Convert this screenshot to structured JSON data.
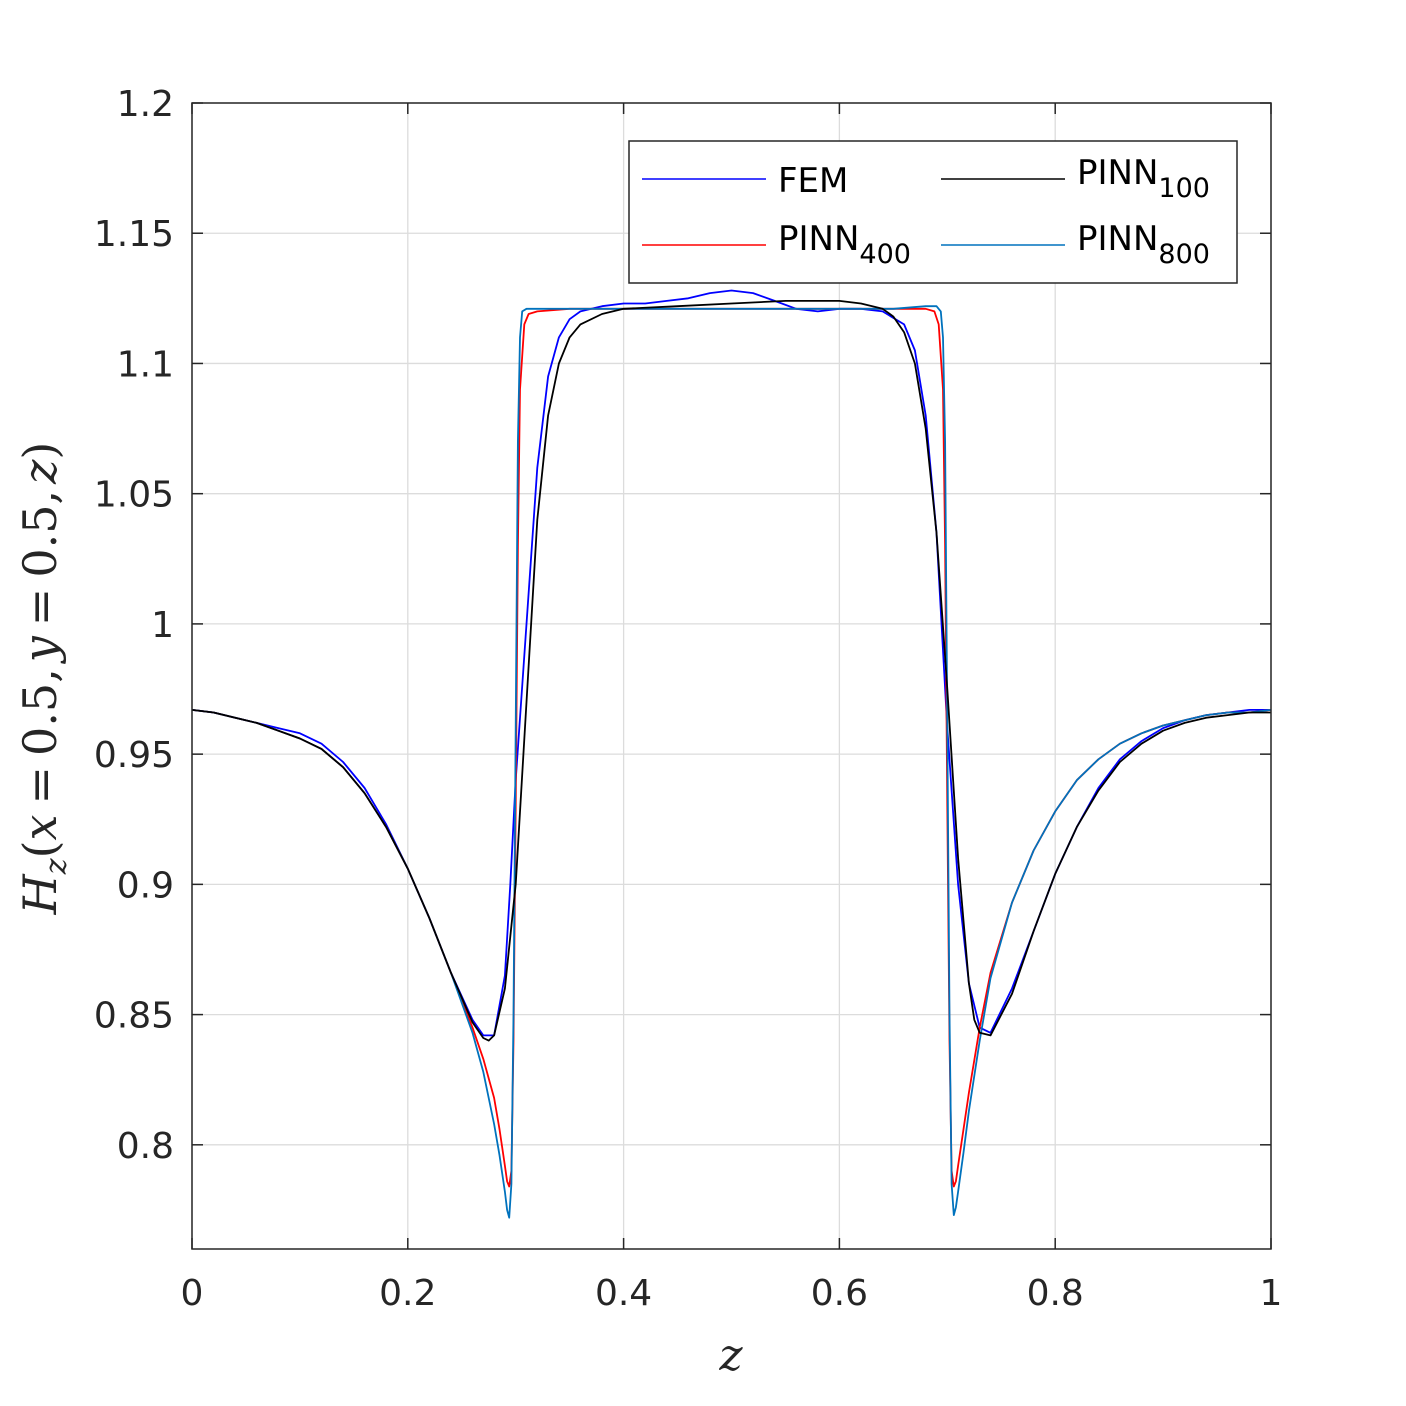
{
  "chart_data": {
    "type": "line",
    "title": "",
    "xlabel": "z",
    "ylabel": {
      "H": "H",
      "z_sub": "z",
      "open": "(",
      "x": "x",
      "eq": "=",
      "v1": "0.5",
      "comma": ",",
      "y": "y",
      "v2": "0.5",
      "z": "z",
      "close": ")"
    },
    "xlim": [
      0,
      1
    ],
    "ylim": [
      0.76,
      1.2
    ],
    "xticks": [
      0,
      0.2,
      0.4,
      0.6,
      0.8,
      1
    ],
    "xtick_labels": [
      "0",
      "0.2",
      "0.4",
      "0.6",
      "0.8",
      "1"
    ],
    "yticks": [
      0.8,
      0.85,
      0.9,
      0.95,
      1,
      1.05,
      1.1,
      1.15,
      1.2
    ],
    "ytick_labels": [
      "0.8",
      "0.85",
      "0.9",
      "0.95",
      "1",
      "1.05",
      "1.1",
      "1.15",
      "1.2"
    ],
    "grid": true,
    "legend": {
      "placement": "top-right",
      "columns": 2
    },
    "series": [
      {
        "name": "FEM",
        "label_main": "FEM",
        "label_sub": "",
        "color": "#0000ff",
        "x": [
          0,
          0.02,
          0.04,
          0.06,
          0.08,
          0.1,
          0.12,
          0.14,
          0.16,
          0.18,
          0.2,
          0.22,
          0.24,
          0.26,
          0.27,
          0.28,
          0.29,
          0.295,
          0.3,
          0.31,
          0.32,
          0.33,
          0.34,
          0.35,
          0.36,
          0.38,
          0.4,
          0.42,
          0.44,
          0.46,
          0.48,
          0.5,
          0.52,
          0.54,
          0.56,
          0.58,
          0.6,
          0.62,
          0.64,
          0.66,
          0.67,
          0.68,
          0.69,
          0.7,
          0.71,
          0.72,
          0.73,
          0.74,
          0.76,
          0.78,
          0.8,
          0.82,
          0.84,
          0.86,
          0.88,
          0.9,
          0.92,
          0.94,
          0.96,
          0.98,
          1
        ],
        "y": [
          0.967,
          0.966,
          0.964,
          0.962,
          0.96,
          0.958,
          0.954,
          0.947,
          0.937,
          0.923,
          0.906,
          0.887,
          0.866,
          0.848,
          0.842,
          0.842,
          0.865,
          0.9,
          0.94,
          1.0,
          1.06,
          1.095,
          1.11,
          1.117,
          1.12,
          1.122,
          1.123,
          1.123,
          1.124,
          1.125,
          1.127,
          1.128,
          1.127,
          1.124,
          1.121,
          1.12,
          1.121,
          1.121,
          1.12,
          1.115,
          1.105,
          1.08,
          1.035,
          0.96,
          0.9,
          0.862,
          0.845,
          0.843,
          0.86,
          0.882,
          0.904,
          0.922,
          0.937,
          0.948,
          0.955,
          0.96,
          0.963,
          0.965,
          0.966,
          0.967,
          0.967
        ]
      },
      {
        "name": "PINN_100",
        "label_main": "PINN",
        "label_sub": "100",
        "color": "#000000",
        "x": [
          0,
          0.02,
          0.04,
          0.06,
          0.08,
          0.1,
          0.12,
          0.14,
          0.16,
          0.18,
          0.2,
          0.22,
          0.24,
          0.26,
          0.27,
          0.275,
          0.28,
          0.29,
          0.3,
          0.31,
          0.32,
          0.33,
          0.34,
          0.35,
          0.36,
          0.38,
          0.4,
          0.45,
          0.5,
          0.55,
          0.6,
          0.62,
          0.64,
          0.65,
          0.66,
          0.67,
          0.68,
          0.69,
          0.7,
          0.71,
          0.72,
          0.725,
          0.73,
          0.74,
          0.76,
          0.78,
          0.8,
          0.82,
          0.84,
          0.86,
          0.88,
          0.9,
          0.92,
          0.94,
          0.96,
          0.98,
          1
        ],
        "y": [
          0.967,
          0.966,
          0.964,
          0.962,
          0.959,
          0.956,
          0.952,
          0.945,
          0.935,
          0.922,
          0.906,
          0.887,
          0.866,
          0.847,
          0.841,
          0.84,
          0.842,
          0.86,
          0.9,
          0.97,
          1.04,
          1.08,
          1.1,
          1.11,
          1.115,
          1.119,
          1.121,
          1.122,
          1.123,
          1.124,
          1.124,
          1.123,
          1.121,
          1.118,
          1.112,
          1.1,
          1.075,
          1.035,
          0.975,
          0.91,
          0.862,
          0.848,
          0.843,
          0.842,
          0.858,
          0.882,
          0.904,
          0.922,
          0.936,
          0.947,
          0.954,
          0.959,
          0.962,
          0.964,
          0.965,
          0.966,
          0.966
        ]
      },
      {
        "name": "PINN_400",
        "label_main": "PINN",
        "label_sub": "400",
        "color": "#ff0000",
        "x": [
          0,
          0.02,
          0.04,
          0.06,
          0.08,
          0.1,
          0.12,
          0.14,
          0.16,
          0.18,
          0.2,
          0.22,
          0.24,
          0.26,
          0.27,
          0.28,
          0.285,
          0.29,
          0.292,
          0.294,
          0.296,
          0.298,
          0.3,
          0.302,
          0.304,
          0.308,
          0.312,
          0.32,
          0.35,
          0.4,
          0.5,
          0.6,
          0.65,
          0.68,
          0.688,
          0.692,
          0.696,
          0.698,
          0.7,
          0.702,
          0.704,
          0.706,
          0.708,
          0.71,
          0.715,
          0.72,
          0.73,
          0.74,
          0.76,
          0.78,
          0.8,
          0.82,
          0.84,
          0.86,
          0.88,
          0.9,
          0.92,
          0.94,
          0.96,
          0.98,
          1
        ],
        "y": [
          0.967,
          0.966,
          0.964,
          0.962,
          0.959,
          0.956,
          0.952,
          0.945,
          0.935,
          0.922,
          0.906,
          0.887,
          0.866,
          0.845,
          0.833,
          0.818,
          0.806,
          0.792,
          0.786,
          0.784,
          0.79,
          0.84,
          0.93,
          1.03,
          1.09,
          1.115,
          1.119,
          1.12,
          1.121,
          1.121,
          1.121,
          1.121,
          1.121,
          1.121,
          1.12,
          1.115,
          1.09,
          1.03,
          0.93,
          0.84,
          0.79,
          0.784,
          0.786,
          0.792,
          0.806,
          0.82,
          0.845,
          0.866,
          0.893,
          0.913,
          0.928,
          0.94,
          0.948,
          0.954,
          0.958,
          0.961,
          0.963,
          0.965,
          0.966,
          0.966,
          0.967
        ]
      },
      {
        "name": "PINN_800",
        "label_main": "PINN",
        "label_sub": "800",
        "color": "#0072bd",
        "x": [
          0,
          0.02,
          0.04,
          0.06,
          0.08,
          0.1,
          0.12,
          0.14,
          0.16,
          0.18,
          0.2,
          0.22,
          0.24,
          0.26,
          0.27,
          0.28,
          0.285,
          0.29,
          0.292,
          0.294,
          0.296,
          0.298,
          0.3,
          0.302,
          0.304,
          0.306,
          0.31,
          0.32,
          0.35,
          0.4,
          0.5,
          0.6,
          0.65,
          0.68,
          0.69,
          0.694,
          0.696,
          0.698,
          0.7,
          0.702,
          0.704,
          0.706,
          0.708,
          0.71,
          0.715,
          0.72,
          0.73,
          0.74,
          0.76,
          0.78,
          0.8,
          0.82,
          0.84,
          0.86,
          0.88,
          0.9,
          0.92,
          0.94,
          0.96,
          0.98,
          1
        ],
        "y": [
          0.967,
          0.966,
          0.964,
          0.962,
          0.959,
          0.956,
          0.952,
          0.945,
          0.935,
          0.922,
          0.906,
          0.887,
          0.866,
          0.843,
          0.828,
          0.808,
          0.796,
          0.782,
          0.775,
          0.772,
          0.785,
          0.85,
          0.96,
          1.07,
          1.11,
          1.12,
          1.121,
          1.121,
          1.121,
          1.121,
          1.121,
          1.121,
          1.121,
          1.122,
          1.122,
          1.12,
          1.11,
          1.07,
          0.96,
          0.85,
          0.785,
          0.773,
          0.776,
          0.782,
          0.797,
          0.813,
          0.84,
          0.864,
          0.893,
          0.913,
          0.928,
          0.94,
          0.948,
          0.954,
          0.958,
          0.961,
          0.963,
          0.965,
          0.966,
          0.966,
          0.967
        ]
      }
    ]
  }
}
